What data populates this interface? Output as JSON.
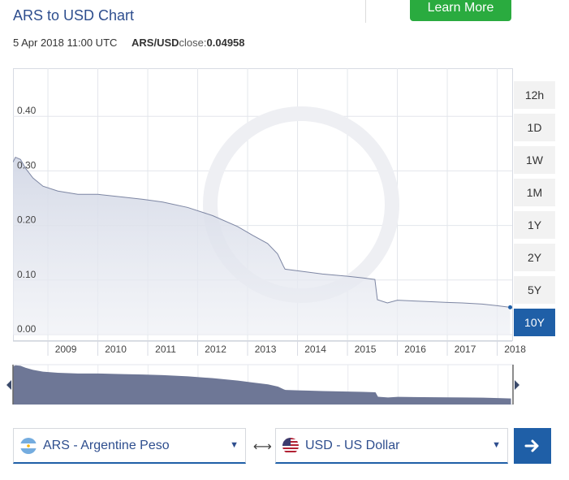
{
  "header": {
    "title": "ARS to USD Chart",
    "learn_more_label": "Learn More"
  },
  "meta": {
    "timestamp": "5 Apr 2018 11:00 UTC",
    "pair": "ARS/USD",
    "close_label": "close:",
    "close_value": "0.04958"
  },
  "colors": {
    "brand_blue": "#1f5fa7",
    "learn_green": "#2aab3f",
    "area_fill": "#dfe3ee",
    "navigator_fill": "#6e7796"
  },
  "range_buttons": [
    "12h",
    "1D",
    "1W",
    "1M",
    "1Y",
    "2Y",
    "5Y",
    "10Y"
  ],
  "range_selected": "10Y",
  "converter": {
    "from_label": "ARS - Argentine Peso",
    "to_label": "USD - US Dollar",
    "from_flag": "argentina-flag-icon",
    "to_flag": "us-flag-icon",
    "swap_icon": "⟷",
    "go_icon": "arrow-right-icon"
  },
  "chart_data": {
    "type": "area",
    "title": "",
    "xlabel": "",
    "ylabel": "",
    "y_ticks": [
      "0.00",
      "0.10",
      "0.20",
      "0.30",
      "0.40"
    ],
    "x_ticks": [
      "2009",
      "2010",
      "2011",
      "2012",
      "2013",
      "2014",
      "2015",
      "2016",
      "2017",
      "2018"
    ],
    "ylim": [
      0,
      0.5
    ],
    "xlim": [
      2008.3,
      2018.3
    ],
    "grid": true,
    "legend": "none",
    "series": [
      {
        "x": [
          2008.3,
          2008.35,
          2008.45,
          2008.55,
          2008.7,
          2008.9,
          2009.2,
          2009.6,
          2010.0,
          2010.5,
          2010.9,
          2011.3,
          2011.8,
          2012.3,
          2012.8,
          2013.1,
          2013.4,
          2013.6,
          2013.72,
          2013.75,
          2014.0,
          2014.5,
          2015.0,
          2015.3,
          2015.55,
          2015.6,
          2015.8,
          2016.0,
          2016.5,
          2017.0,
          2017.3,
          2017.7,
          2018.0,
          2018.26
        ],
        "values": [
          0.316,
          0.325,
          0.321,
          0.305,
          0.287,
          0.272,
          0.263,
          0.257,
          0.257,
          0.252,
          0.248,
          0.243,
          0.233,
          0.218,
          0.198,
          0.182,
          0.167,
          0.148,
          0.125,
          0.12,
          0.117,
          0.111,
          0.107,
          0.104,
          0.101,
          0.064,
          0.058,
          0.063,
          0.061,
          0.059,
          0.058,
          0.056,
          0.053,
          0.05
        ]
      }
    ]
  }
}
